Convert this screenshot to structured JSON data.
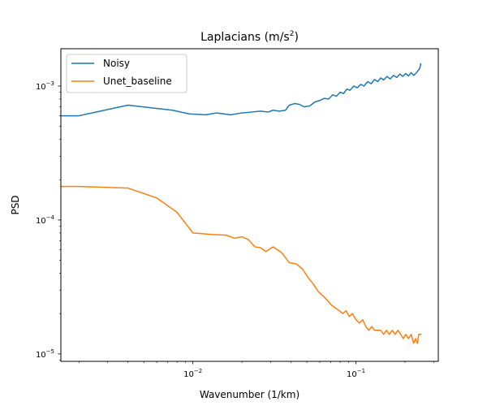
{
  "chart_data": {
    "type": "line",
    "title": "Laplacians (m/s",
    "title_superscript": "2",
    "title_suffix": ")",
    "xlabel": "Wavenumber (1/km)",
    "ylabel": "PSD",
    "xscale": "log",
    "yscale": "log",
    "xlim": [
      0.00155,
      0.32
    ],
    "ylim": [
      8.8e-06,
      0.0019
    ],
    "x_ticks": [
      {
        "value": 0.01,
        "base": "10",
        "exp": "−2"
      },
      {
        "value": 0.1,
        "base": "10",
        "exp": "−1"
      }
    ],
    "y_ticks": [
      {
        "value": 1e-05,
        "base": "10",
        "exp": "−5"
      },
      {
        "value": 0.0001,
        "base": "10",
        "exp": "−4"
      },
      {
        "value": 0.001,
        "base": "10",
        "exp": "−3"
      }
    ],
    "grid": false,
    "legend_position": "top-left",
    "series": [
      {
        "name": "Noisy",
        "color": "#1f77b4",
        "points": [
          [
            0.00155,
            0.0006
          ],
          [
            0.002,
            0.0006
          ],
          [
            0.004,
            0.00072
          ],
          [
            0.0075,
            0.00066
          ],
          [
            0.0095,
            0.00062
          ],
          [
            0.012,
            0.00061
          ],
          [
            0.014,
            0.00063
          ],
          [
            0.017,
            0.00061
          ],
          [
            0.02,
            0.00063
          ],
          [
            0.023,
            0.00064
          ],
          [
            0.026,
            0.00065
          ],
          [
            0.029,
            0.00064
          ],
          [
            0.031,
            0.00066
          ],
          [
            0.034,
            0.00065
          ],
          [
            0.037,
            0.00066
          ],
          [
            0.039,
            0.00072
          ],
          [
            0.042,
            0.00074
          ],
          [
            0.045,
            0.00073
          ],
          [
            0.048,
            0.0007
          ],
          [
            0.052,
            0.00071
          ],
          [
            0.056,
            0.00076
          ],
          [
            0.06,
            0.00078
          ],
          [
            0.064,
            0.00081
          ],
          [
            0.068,
            0.0008
          ],
          [
            0.072,
            0.00086
          ],
          [
            0.076,
            0.00084
          ],
          [
            0.08,
            0.0009
          ],
          [
            0.084,
            0.00088
          ],
          [
            0.088,
            0.00095
          ],
          [
            0.092,
            0.00093
          ],
          [
            0.097,
            0.001
          ],
          [
            0.102,
            0.00097
          ],
          [
            0.107,
            0.00103
          ],
          [
            0.112,
            0.001
          ],
          [
            0.118,
            0.00108
          ],
          [
            0.124,
            0.00104
          ],
          [
            0.13,
            0.00112
          ],
          [
            0.136,
            0.00108
          ],
          [
            0.142,
            0.00115
          ],
          [
            0.148,
            0.00111
          ],
          [
            0.155,
            0.00118
          ],
          [
            0.162,
            0.00113
          ],
          [
            0.17,
            0.0012
          ],
          [
            0.178,
            0.00116
          ],
          [
            0.186,
            0.00123
          ],
          [
            0.194,
            0.00118
          ],
          [
            0.202,
            0.00124
          ],
          [
            0.21,
            0.00119
          ],
          [
            0.218,
            0.00126
          ],
          [
            0.226,
            0.0012
          ],
          [
            0.234,
            0.00125
          ],
          [
            0.24,
            0.0013
          ],
          [
            0.245,
            0.00134
          ],
          [
            0.248,
            0.0014
          ],
          [
            0.25,
            0.00148
          ]
        ]
      },
      {
        "name": "Unet_baseline",
        "color": "#ff7f0e",
        "points": [
          [
            0.00155,
            0.000178
          ],
          [
            0.002,
            0.000178
          ],
          [
            0.004,
            0.000173
          ],
          [
            0.006,
            0.000146
          ],
          [
            0.008,
            0.000114
          ],
          [
            0.01,
            8e-05
          ],
          [
            0.013,
            7.8e-05
          ],
          [
            0.016,
            7.7e-05
          ],
          [
            0.018,
            7.3e-05
          ],
          [
            0.02,
            7.5e-05
          ],
          [
            0.022,
            7.1e-05
          ],
          [
            0.024,
            6.3e-05
          ],
          [
            0.026,
            6.2e-05
          ],
          [
            0.028,
            5.8e-05
          ],
          [
            0.031,
            6.3e-05
          ],
          [
            0.035,
            5.7e-05
          ],
          [
            0.039,
            4.8e-05
          ],
          [
            0.043,
            4.7e-05
          ],
          [
            0.047,
            4.3e-05
          ],
          [
            0.051,
            3.7e-05
          ],
          [
            0.055,
            3.3e-05
          ],
          [
            0.059,
            2.9e-05
          ],
          [
            0.063,
            2.7e-05
          ],
          [
            0.067,
            2.5e-05
          ],
          [
            0.071,
            2.3e-05
          ],
          [
            0.075,
            2.2e-05
          ],
          [
            0.079,
            2.1e-05
          ],
          [
            0.083,
            2e-05
          ],
          [
            0.087,
            2.1e-05
          ],
          [
            0.091,
            1.9e-05
          ],
          [
            0.095,
            2e-05
          ],
          [
            0.1,
            1.8e-05
          ],
          [
            0.105,
            1.7e-05
          ],
          [
            0.11,
            1.8e-05
          ],
          [
            0.115,
            1.6e-05
          ],
          [
            0.12,
            1.5e-05
          ],
          [
            0.125,
            1.6e-05
          ],
          [
            0.13,
            1.5e-05
          ],
          [
            0.136,
            1.5e-05
          ],
          [
            0.142,
            1.5e-05
          ],
          [
            0.148,
            1.4e-05
          ],
          [
            0.154,
            1.5e-05
          ],
          [
            0.16,
            1.4e-05
          ],
          [
            0.167,
            1.5e-05
          ],
          [
            0.174,
            1.4e-05
          ],
          [
            0.181,
            1.5e-05
          ],
          [
            0.188,
            1.4e-05
          ],
          [
            0.195,
            1.3e-05
          ],
          [
            0.202,
            1.4e-05
          ],
          [
            0.21,
            1.3e-05
          ],
          [
            0.218,
            1.4e-05
          ],
          [
            0.226,
            1.2e-05
          ],
          [
            0.232,
            1.3e-05
          ],
          [
            0.238,
            1.2e-05
          ],
          [
            0.243,
            1.4e-05
          ],
          [
            0.248,
            1.4e-05
          ],
          [
            0.252,
            1.4e-05
          ]
        ]
      }
    ]
  }
}
